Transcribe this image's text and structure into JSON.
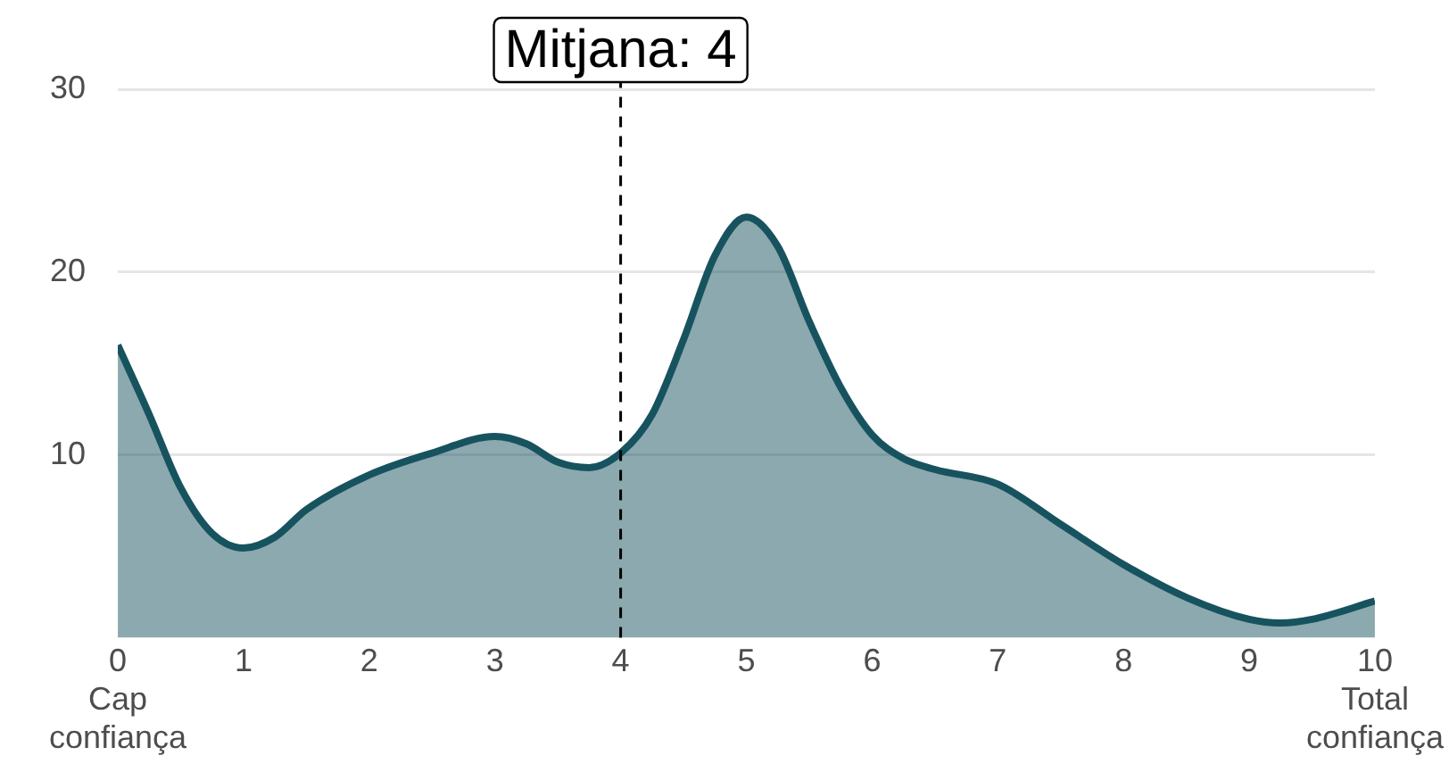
{
  "chart_data": {
    "type": "area",
    "x": [
      0,
      0.25,
      0.5,
      0.75,
      1,
      1.25,
      1.5,
      2,
      2.5,
      3,
      3.25,
      3.5,
      3.75,
      4,
      4.25,
      4.5,
      4.75,
      5,
      5.25,
      5.5,
      5.75,
      6,
      6.25,
      6.5,
      7,
      7.5,
      8,
      8.5,
      9,
      9.25,
      9.5,
      10
    ],
    "series": [
      {
        "color": "#17535f",
        "values": [
          16,
          12.2,
          8.2,
          5.7,
          4.9,
          5.5,
          7,
          8.9,
          10.1,
          11,
          10.6,
          9.6,
          9.3,
          10.1,
          12.2,
          16.3,
          20.9,
          23,
          21.4,
          17.3,
          13.7,
          11.1,
          9.8,
          9.2,
          8.4,
          6.2,
          4,
          2.2,
          1,
          0.8,
          1,
          2
        ]
      }
    ],
    "xlim": [
      0,
      10
    ],
    "xticks": [
      {
        "value": 0,
        "label": "0\nCap\nconfiança"
      },
      1,
      2,
      3,
      4,
      5,
      6,
      7,
      8,
      9,
      {
        "value": 10,
        "label": "10\nTotal\nconfiança"
      }
    ],
    "ylim": [
      0,
      30
    ],
    "yticks": [
      10,
      20,
      30
    ],
    "grid": "y",
    "legend": false,
    "marker": "none",
    "line_style": "solid",
    "ref_lines": [
      {
        "axis": "x",
        "value": 4,
        "label": "Mitjana: 4",
        "line_style": "dashed",
        "color": "#000000"
      }
    ]
  }
}
